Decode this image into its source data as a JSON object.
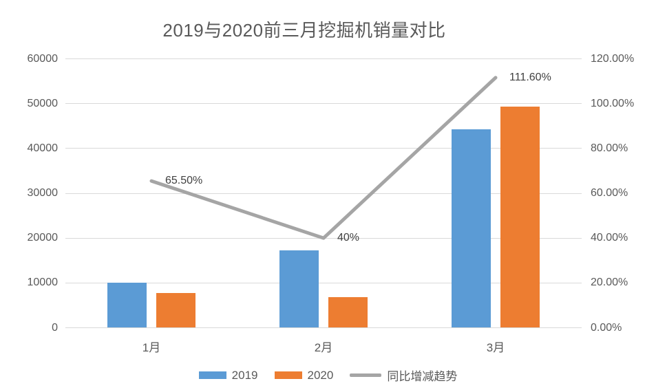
{
  "title": "2019与2020前三月挖掘机销量对比",
  "chart_data": {
    "type": "combo",
    "title": "2019与2020前三月挖掘机销量对比",
    "categories": [
      "1月",
      "2月",
      "3月"
    ],
    "series": [
      {
        "name": "2019",
        "type": "bar",
        "axis": "left",
        "color": "#5B9BD5",
        "values": [
          10100,
          17200,
          44300
        ]
      },
      {
        "name": "2020",
        "type": "bar",
        "axis": "left",
        "color": "#ED7D31",
        "values": [
          7800,
          6900,
          49400
        ]
      },
      {
        "name": "同比增减趋势",
        "type": "line",
        "axis": "right",
        "color": "#A5A5A5",
        "values": [
          65.5,
          40,
          111.6
        ],
        "point_labels": [
          "65.50%",
          "40%",
          "111.60%"
        ]
      }
    ],
    "left_axis": {
      "min": 0,
      "max": 60000,
      "step": 10000,
      "tick_labels": [
        "0",
        "10000",
        "20000",
        "30000",
        "40000",
        "50000",
        "60000"
      ]
    },
    "right_axis": {
      "min": 0,
      "max": 120,
      "step": 20,
      "tick_labels": [
        "0.00%",
        "20.00%",
        "40.00%",
        "60.00%",
        "80.00%",
        "100.00%",
        "120.00%"
      ]
    },
    "grid": true,
    "legend_position": "bottom"
  },
  "colors": {
    "bar_2019": "#5B9BD5",
    "bar_2020": "#ED7D31",
    "trend_line": "#A5A5A5",
    "gridline": "#D9D9D9",
    "axis_text": "#595959",
    "title_text": "#595959",
    "point_label_text": "#404040"
  }
}
